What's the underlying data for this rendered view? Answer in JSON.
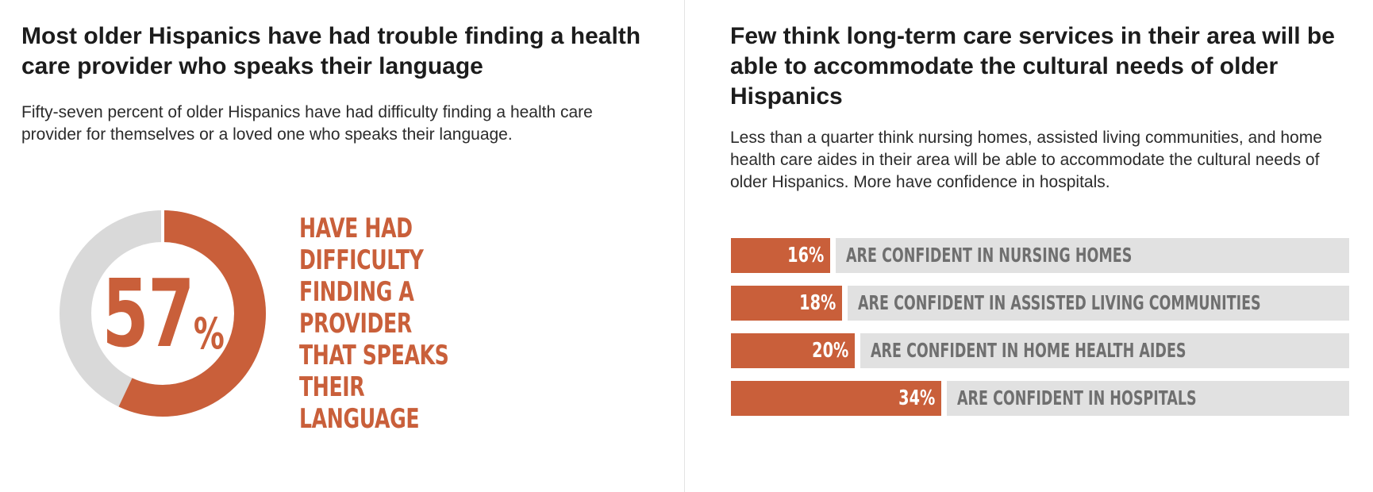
{
  "colors": {
    "accent": "#c95f3a",
    "track": "#d9d9d9",
    "bar_rest": "#e1e1e1",
    "label_gray": "#6f6f6f"
  },
  "left": {
    "title": "Most older Hispanics have had trouble finding a health care provider who speaks their language",
    "subtitle": "Fifty-seven percent of older Hispanics have had difficulty finding a health care provider for themselves or a loved one who speaks their language.",
    "donut_label": "HAVE HAD DIFFICULTY FINDING A PROVIDER THAT SPEAKS THEIR LANGUAGE"
  },
  "right": {
    "title": "Few think long-term care services in their area will be able to accommodate the cultural needs of older Hispanics",
    "subtitle": "Less than a quarter think nursing homes, assisted living communities, and home health care aides in their area will be able to accommodate the cultural needs of older Hispanics. More have confidence in hospitals."
  },
  "chart_data": [
    {
      "type": "pie",
      "variant": "donut",
      "value": 57,
      "value_label": "57",
      "unit_label": "%",
      "label": "HAVE HAD DIFFICULTY FINDING A PROVIDER THAT SPEAKS THEIR LANGUAGE",
      "slices": [
        {
          "label": "HAVE HAD DIFFICULTY FINDING A PROVIDER THAT SPEAKS THEIR LANGUAGE",
          "value": 57
        },
        {
          "label": "",
          "value": 43
        }
      ]
    },
    {
      "type": "bar",
      "orientation": "horizontal",
      "xlim": [
        0,
        100
      ],
      "categories": [
        "ARE CONFIDENT IN NURSING HOMES",
        "ARE CONFIDENT IN ASSISTED LIVING COMMUNITIES",
        "ARE CONFIDENT IN HOME HEALTH AIDES",
        "ARE CONFIDENT IN HOSPITALS"
      ],
      "values": [
        16,
        18,
        20,
        34
      ],
      "value_labels": [
        "16%",
        "18%",
        "20%",
        "34%"
      ]
    }
  ]
}
